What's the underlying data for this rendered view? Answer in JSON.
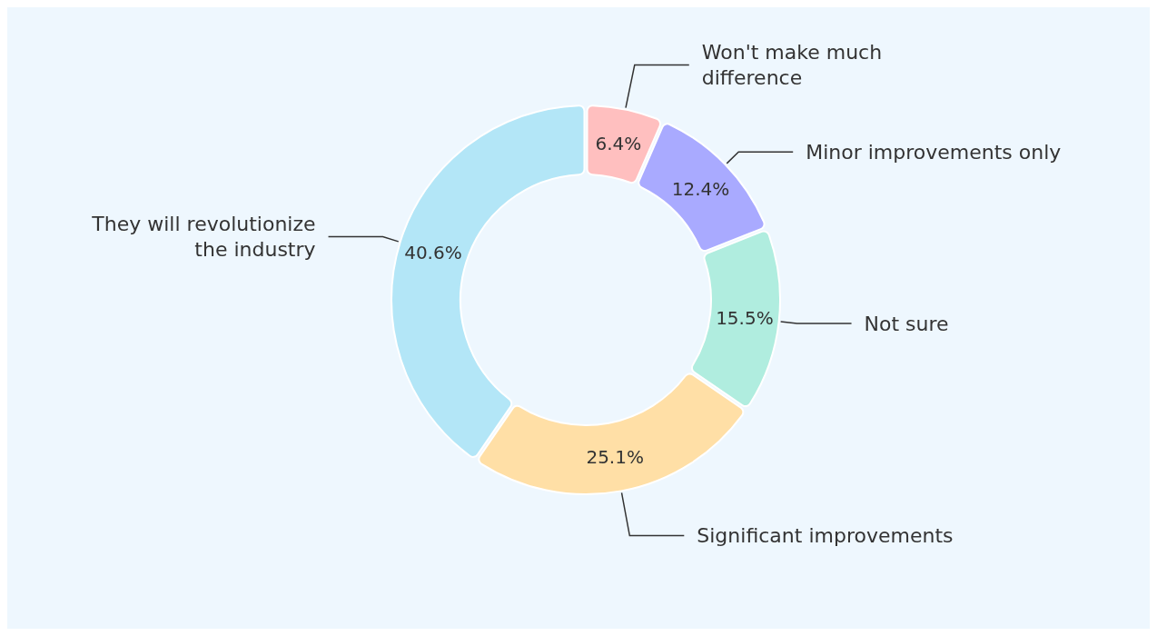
{
  "chart_data": {
    "type": "donut",
    "categories": [
      "Won't make much difference",
      "Minor improvements only",
      "Not sure",
      "Significant improvements",
      "They will revolutionize the industry"
    ],
    "values": [
      6.4,
      12.4,
      15.5,
      25.1,
      40.6
    ],
    "colors": [
      "#ffbfbf",
      "#a9aaff",
      "#b0eddf",
      "#ffdfa6",
      "#b3e6f7"
    ],
    "value_labels": [
      "6.4%",
      "12.4%",
      "15.5%",
      "25.1%",
      "40.6%"
    ]
  }
}
